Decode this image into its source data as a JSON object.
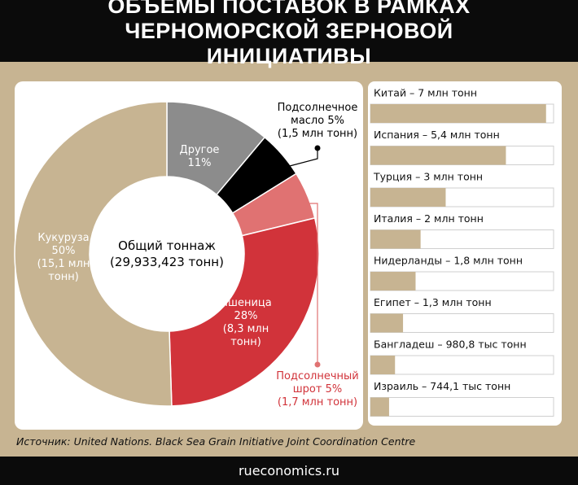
{
  "title": "ОБЪЕМЫ ПОСТАВОК В РАМКАХ ЧЕРНОМОРСКОЙ ЗЕРНОВОЙ ИНИЦИАТИВЫ",
  "source": "Источник: United Nations. Black Sea Grain Initiative Joint Coordination Centre",
  "footer": "rueconomics.ru",
  "chart_data": [
    {
      "type": "pie",
      "center_label": "Общий тоннаж",
      "center_value_label": "(29,933,423 тонн)",
      "categories": [
        "Другое",
        "Подсолнечное масло",
        "Подсолнечный шрот",
        "Пшеница",
        "Кукуруза"
      ],
      "values": [
        11,
        5,
        5,
        28,
        50
      ],
      "value_labels": [
        "11%",
        "5%",
        "5%",
        "28%",
        "50%"
      ],
      "detail_labels": [
        null,
        "(1,5 млн тонн)",
        "(1,7 млн тонн)",
        "(8,3 млн тонн)",
        "(15,1 млн тонн)"
      ],
      "colors": [
        "#8c8c8c",
        "#000000",
        "#e07272",
        "#d1333a",
        "#c7b492"
      ]
    },
    {
      "type": "bar",
      "categories": [
        "Китай – 7 млн тонн",
        "Испания – 5,4 млн тонн",
        "Турция – 3 млн тонн",
        "Италия – 2 млн тонн",
        "Нидерланды – 1,8 млн тонн",
        "Египет – 1,3 млн тонн",
        "Бангладеш – 980,8 тыс тонн",
        "Израиль – 744,1 тыс тонн"
      ],
      "values": [
        7,
        5.4,
        3,
        2,
        1.8,
        1.3,
        0.9808,
        0.7441
      ],
      "xlim": [
        0,
        7.3
      ],
      "color": "#c7b492"
    }
  ]
}
